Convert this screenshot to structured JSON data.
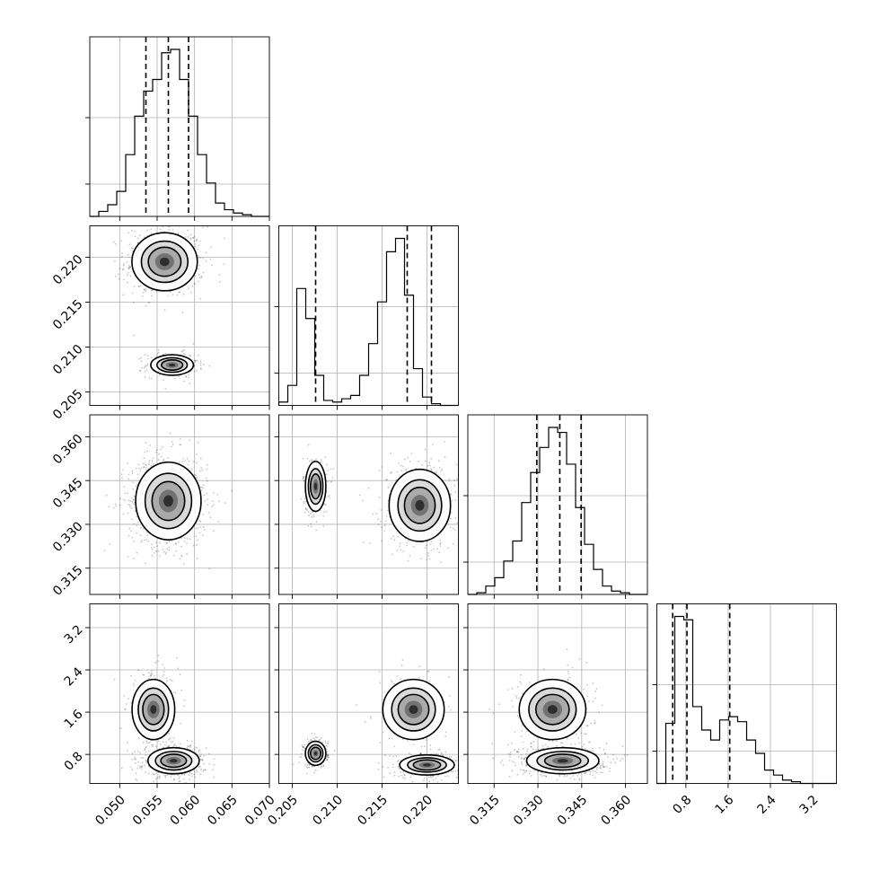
{
  "chart_data": {
    "type": "corner",
    "n_params": 4,
    "params": [
      {
        "range": [
          0.046,
          0.07
        ],
        "ticks": [
          0.05,
          0.055,
          0.06,
          0.065,
          0.07
        ],
        "tick_labels": [
          "0.050",
          "0.055",
          "0.060",
          "0.065",
          "0.070"
        ]
      },
      {
        "range": [
          0.2035,
          0.2235
        ],
        "ticks": [
          0.205,
          0.21,
          0.215,
          0.22
        ],
        "tick_labels": [
          "0.205",
          "0.210",
          "0.215",
          "0.220"
        ]
      },
      {
        "range": [
          0.306,
          0.3675
        ],
        "ticks": [
          0.315,
          0.33,
          0.345,
          0.36
        ],
        "tick_labels": [
          "0.315",
          "0.330",
          "0.345",
          "0.360"
        ]
      },
      {
        "range": [
          0.25,
          3.65
        ],
        "ticks": [
          0.8,
          1.6,
          2.4,
          3.2
        ],
        "tick_labels": [
          "0.8",
          "1.6",
          "2.4",
          "3.2"
        ]
      }
    ],
    "quantiles": [
      [
        0.0535,
        0.0565,
        0.0592
      ],
      [
        0.2076,
        0.2178,
        0.2205
      ],
      [
        0.3296,
        0.3375,
        0.3448
      ],
      [
        0.55,
        0.82,
        1.63
      ]
    ],
    "histograms": [
      {
        "param": 0,
        "counts": [
          0.0,
          0.03,
          0.07,
          0.15,
          0.37,
          0.6,
          0.75,
          0.82,
          0.98,
          1.0,
          0.82,
          0.6,
          0.37,
          0.2,
          0.08,
          0.04,
          0.02,
          0.01,
          0.0,
          0.0
        ]
      },
      {
        "param": 1,
        "counts": [
          0.02,
          0.12,
          0.7,
          0.52,
          0.18,
          0.03,
          0.02,
          0.04,
          0.06,
          0.18,
          0.37,
          0.62,
          0.92,
          1.0,
          0.66,
          0.22,
          0.05,
          0.01,
          0.0,
          0.0
        ]
      },
      {
        "param": 2,
        "counts": [
          0.0,
          0.01,
          0.05,
          0.1,
          0.2,
          0.32,
          0.55,
          0.73,
          0.88,
          1.0,
          0.97,
          0.78,
          0.52,
          0.3,
          0.15,
          0.05,
          0.02,
          0.01,
          0.0,
          0.0
        ]
      },
      {
        "param": 3,
        "counts": [
          0.0,
          0.36,
          1.0,
          0.98,
          0.46,
          0.32,
          0.26,
          0.38,
          0.4,
          0.37,
          0.26,
          0.18,
          0.08,
          0.05,
          0.02,
          0.01,
          0.0,
          0.0,
          0.0,
          0.0
        ]
      }
    ],
    "scatter_clusters": [
      {
        "row": 1,
        "col": 0,
        "blobs": [
          {
            "cx": 0.056,
            "cy": 0.2195,
            "sx": 0.0023,
            "sy": 0.0017,
            "w": 0.68
          },
          {
            "cx": 0.057,
            "cy": 0.208,
            "sx": 0.0015,
            "sy": 0.0006,
            "w": 0.32
          }
        ]
      },
      {
        "row": 2,
        "col": 0,
        "blobs": [
          {
            "cx": 0.0565,
            "cy": 0.338,
            "sx": 0.0023,
            "sy": 0.007,
            "w": 1.0
          }
        ]
      },
      {
        "row": 2,
        "col": 1,
        "blobs": [
          {
            "cx": 0.2076,
            "cy": 0.343,
            "sx": 0.0006,
            "sy": 0.0045,
            "w": 0.32
          },
          {
            "cx": 0.2192,
            "cy": 0.3365,
            "sx": 0.0018,
            "sy": 0.0065,
            "w": 0.68
          }
        ]
      },
      {
        "row": 3,
        "col": 0,
        "blobs": [
          {
            "cx": 0.0545,
            "cy": 1.65,
            "sx": 0.0015,
            "sy": 0.3,
            "w": 0.32
          },
          {
            "cx": 0.0572,
            "cy": 0.68,
            "sx": 0.0018,
            "sy": 0.13,
            "w": 0.68
          }
        ]
      },
      {
        "row": 3,
        "col": 1,
        "blobs": [
          {
            "cx": 0.2076,
            "cy": 0.82,
            "sx": 0.0006,
            "sy": 0.12,
            "w": 0.32
          },
          {
            "cx": 0.2185,
            "cy": 1.65,
            "sx": 0.0018,
            "sy": 0.3,
            "w": 0.22
          },
          {
            "cx": 0.22,
            "cy": 0.6,
            "sx": 0.0016,
            "sy": 0.1,
            "w": 0.46
          }
        ]
      },
      {
        "row": 3,
        "col": 2,
        "blobs": [
          {
            "cx": 0.335,
            "cy": 1.65,
            "sx": 0.006,
            "sy": 0.3,
            "w": 0.32
          },
          {
            "cx": 0.3385,
            "cy": 0.68,
            "sx": 0.0065,
            "sy": 0.13,
            "w": 0.68
          }
        ]
      }
    ],
    "grid": true
  }
}
